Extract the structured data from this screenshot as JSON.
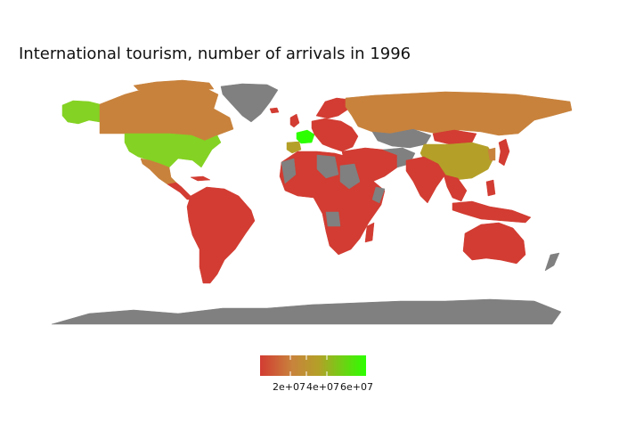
{
  "title": "International tourism, number of arrivals in 1996",
  "colors": {
    "low": "#d23c32",
    "mid_low": "#c8823c",
    "mid": "#b4a028",
    "mid_high": "#84d223",
    "high": "#2cff00",
    "no_data": "#808080"
  },
  "legend": {
    "tick_labels": [
      "2e+07",
      "4e+07",
      "6e+07"
    ]
  },
  "regions": [
    {
      "name": "Canada",
      "value_class": "mid_low"
    },
    {
      "name": "United States",
      "value_class": "mid_high"
    },
    {
      "name": "Alaska",
      "value_class": "mid_high"
    },
    {
      "name": "Greenland",
      "value_class": "no_data"
    },
    {
      "name": "Mexico",
      "value_class": "mid_low"
    },
    {
      "name": "Central America",
      "value_class": "low"
    },
    {
      "name": "South America",
      "value_class": "low"
    },
    {
      "name": "France",
      "value_class": "high"
    },
    {
      "name": "Spain",
      "value_class": "mid"
    },
    {
      "name": "Europe",
      "value_class": "low"
    },
    {
      "name": "Russia",
      "value_class": "mid_low"
    },
    {
      "name": "Africa",
      "value_class": "low"
    },
    {
      "name": "Middle East",
      "value_class": "low"
    },
    {
      "name": "China",
      "value_class": "mid"
    },
    {
      "name": "South Asia",
      "value_class": "low"
    },
    {
      "name": "Southeast Asia",
      "value_class": "low"
    },
    {
      "name": "Australia",
      "value_class": "low"
    },
    {
      "name": "Antarctica",
      "value_class": "no_data"
    }
  ]
}
